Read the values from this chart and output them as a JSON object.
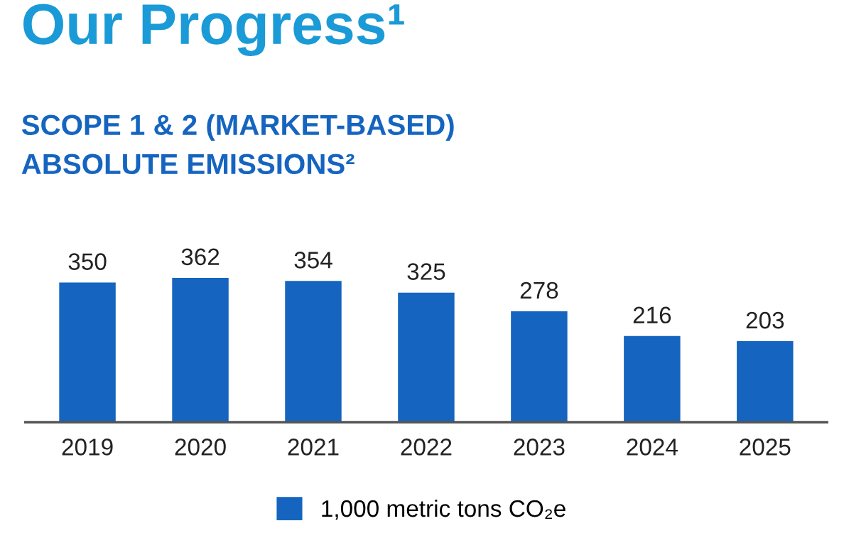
{
  "chart_data": {
    "type": "bar",
    "title": "Our Progress¹",
    "subtitle": "SCOPE 1 & 2 (MARKET-BASED)\nABSOLUTE EMISSIONS²",
    "categories": [
      "2019",
      "2020",
      "2021",
      "2022",
      "2023",
      "2024",
      "2025"
    ],
    "series": [
      {
        "name": "1,000 metric tons CO₂e",
        "color": "#1565c0",
        "values": [
          350,
          362,
          354,
          325,
          278,
          216,
          203
        ]
      }
    ],
    "data_labels": true,
    "legend": "bottom",
    "grid": false
  }
}
